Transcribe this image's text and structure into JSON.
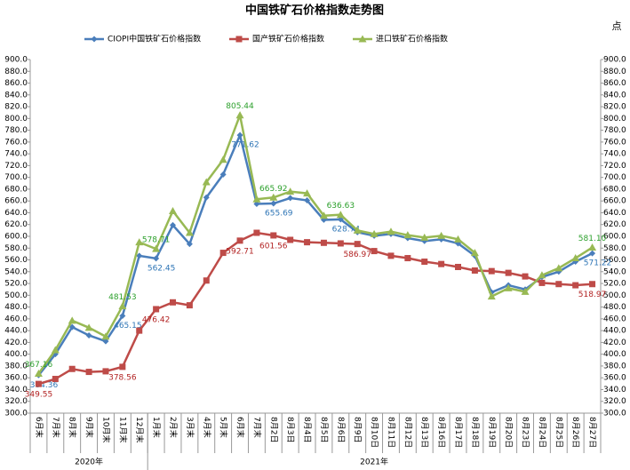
{
  "chart_data": {
    "type": "line",
    "title": "中国铁矿石价格指数走势图",
    "y2label": "点",
    "categories": [
      "6月末",
      "7月末",
      "8月末",
      "9月末",
      "10月末",
      "11月末",
      "12月末",
      "1月末",
      "2月末",
      "3月末",
      "4月末",
      "5月末",
      "6月末",
      "7月末",
      "8月2日",
      "8月3日",
      "8月4日",
      "8月5日",
      "8月6日",
      "8月9日",
      "8月10日",
      "8月11日",
      "8月12日",
      "8月13日",
      "8月16日",
      "8月17日",
      "8月18日",
      "8月19日",
      "8月20日",
      "8月23日",
      "8月24日",
      "8月25日",
      "8月26日",
      "8月27日"
    ],
    "groups": [
      {
        "name": "2020年",
        "count": 7
      },
      {
        "name": "2021年",
        "count": 27
      }
    ],
    "series": [
      {
        "name": "CIOPI中国铁矿石价格指数",
        "color": "#4a7ebb",
        "label_color": "#2e75b6",
        "marker": "diamond",
        "values": [
          364.36,
          400,
          446,
          432,
          422,
          465.15,
          567,
          562.45,
          619,
          587,
          666,
          705,
          771.62,
          655,
          655.69,
          665,
          661,
          628,
          628.74,
          607,
          601,
          604,
          597,
          592,
          595,
          588,
          567,
          505,
          517,
          510,
          531,
          540,
          557,
          571.22
        ],
        "value_labels": [
          "364.36",
          null,
          null,
          null,
          null,
          "465.15",
          null,
          "562.45",
          null,
          null,
          null,
          null,
          "771.62",
          null,
          "655.69",
          null,
          null,
          null,
          "628.74",
          null,
          null,
          null,
          null,
          null,
          null,
          null,
          null,
          null,
          null,
          null,
          null,
          null,
          null,
          "571.22"
        ]
      },
      {
        "name": "国产铁矿石价格指数",
        "color": "#be4b48",
        "label_color": "#b22222",
        "marker": "square",
        "values": [
          349.55,
          358,
          375,
          370,
          371,
          378.56,
          440,
          476.42,
          488,
          483,
          525,
          572,
          592.71,
          606,
          601.56,
          594,
          590,
          589,
          588,
          586.97,
          575,
          567,
          563,
          557,
          553,
          548,
          542,
          541,
          538,
          532,
          521,
          519,
          517,
          518.97
        ],
        "value_labels": [
          "349.55",
          null,
          null,
          null,
          null,
          "378.56",
          null,
          "476.42",
          null,
          null,
          null,
          null,
          "592.71",
          null,
          "601.56",
          null,
          null,
          null,
          null,
          "586.97",
          null,
          null,
          null,
          null,
          null,
          null,
          null,
          null,
          null,
          null,
          null,
          null,
          null,
          "518.97"
        ]
      },
      {
        "name": "进口铁矿石价格指数",
        "color": "#98b954",
        "label_color": "#2ca02c",
        "marker": "triangle",
        "values": [
          367.16,
          407,
          457,
          445,
          430,
          481.53,
          590,
          578.71,
          643,
          606,
          692,
          730,
          805.44,
          663,
          665.92,
          676,
          673,
          635,
          636.63,
          610,
          604,
          608,
          602,
          598,
          601,
          595,
          572,
          498,
          512,
          506,
          534,
          546,
          563,
          581.1
        ],
        "value_labels": [
          "367.16",
          null,
          null,
          null,
          null,
          "481.53",
          null,
          "578.71",
          null,
          null,
          null,
          null,
          "805.44",
          null,
          "665.92",
          null,
          null,
          null,
          "636.63",
          null,
          null,
          null,
          null,
          null,
          null,
          null,
          null,
          null,
          null,
          null,
          null,
          null,
          null,
          "581.10"
        ]
      }
    ],
    "ylim": [
      300,
      900
    ],
    "yticks": [
      {
        "value": 300,
        "label": "300.0"
      },
      {
        "value": 320,
        "label": "320.0"
      },
      {
        "value": 340,
        "label": "340.0"
      },
      {
        "value": 360,
        "label": "360.0"
      },
      {
        "value": 380,
        "label": "380.0"
      },
      {
        "value": 400,
        "label": "400.0"
      },
      {
        "value": 420,
        "label": "420.0"
      },
      {
        "value": 440,
        "label": "440.0"
      },
      {
        "value": 460,
        "label": "460.0"
      },
      {
        "value": 480,
        "label": "480.0"
      },
      {
        "value": 500,
        "label": "500.0"
      },
      {
        "value": 520,
        "label": "520.0"
      },
      {
        "value": 540,
        "label": "540.0"
      },
      {
        "value": 560,
        "label": "560.0"
      },
      {
        "value": 580,
        "label": "580.0"
      },
      {
        "value": 600,
        "label": "600.0"
      },
      {
        "value": 620,
        "label": "620.0"
      },
      {
        "value": 640,
        "label": "640.0"
      },
      {
        "value": 660,
        "label": "660.0"
      },
      {
        "value": 680,
        "label": "680.0"
      },
      {
        "value": 700,
        "label": "700.0"
      },
      {
        "value": 720,
        "label": "720.0"
      },
      {
        "value": 740,
        "label": "740.0"
      },
      {
        "value": 760,
        "label": "760.0"
      },
      {
        "value": 780,
        "label": "780.0"
      },
      {
        "value": 800,
        "label": "800.0"
      },
      {
        "value": 820,
        "label": "820.0"
      },
      {
        "value": 840,
        "label": "840.0"
      },
      {
        "value": 860,
        "label": "860.0"
      },
      {
        "value": 880,
        "label": "880.0"
      },
      {
        "value": 900,
        "label": "900.0"
      }
    ],
    "y2lim": [
      300,
      900
    ],
    "y2ticks": [
      {
        "value": 300,
        "label": "300.0"
      },
      {
        "value": 320,
        "label": "320.0"
      },
      {
        "value": 340,
        "label": "340.0"
      },
      {
        "value": 360,
        "label": "360.0"
      },
      {
        "value": 380,
        "label": "380.0"
      },
      {
        "value": 400,
        "label": "400.0"
      },
      {
        "value": 420,
        "label": "420.0"
      },
      {
        "value": 440,
        "label": "440.0"
      },
      {
        "value": 460,
        "label": "460.0"
      },
      {
        "value": 480,
        "label": "480.0"
      },
      {
        "value": 500,
        "label": "500.0"
      },
      {
        "value": 520,
        "label": "520.0"
      },
      {
        "value": 540,
        "label": "540.0"
      },
      {
        "value": 560,
        "label": "560.0"
      },
      {
        "value": 580,
        "label": "580.0"
      },
      {
        "value": 600,
        "label": "600.0"
      },
      {
        "value": 620,
        "label": "620.0"
      },
      {
        "value": 640,
        "label": "640.0"
      },
      {
        "value": 660,
        "label": "660.0"
      },
      {
        "value": 680,
        "label": "680.0"
      },
      {
        "value": 700,
        "label": "700.0"
      },
      {
        "value": 720,
        "label": "720.0"
      },
      {
        "value": 740,
        "label": "740.0"
      },
      {
        "value": 760,
        "label": "760.0"
      },
      {
        "value": 780,
        "label": "780.0"
      },
      {
        "value": 800,
        "label": "800.0"
      },
      {
        "value": 820,
        "label": "820.0"
      },
      {
        "value": 840,
        "label": "840.0"
      },
      {
        "value": 860,
        "label": "860.0"
      },
      {
        "value": 880,
        "label": "880.0"
      },
      {
        "value": 900,
        "label": "900.0"
      }
    ],
    "legend": "top",
    "grid": false
  }
}
